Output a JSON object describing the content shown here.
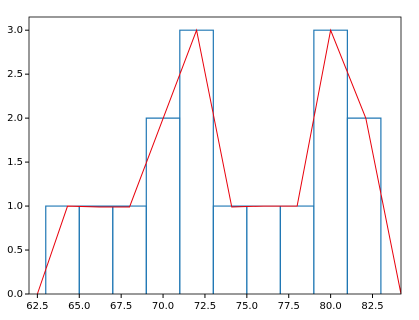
{
  "chart_data": {
    "type": "histogram",
    "bins": [
      63,
      65,
      67,
      69,
      71,
      73,
      75,
      77,
      79,
      81,
      83
    ],
    "counts": [
      1,
      1,
      1,
      2,
      3,
      1,
      1,
      1,
      3,
      2
    ],
    "color": "#1f77b4",
    "line": {
      "x": [
        62.5,
        64.3,
        66.2,
        68.0,
        72.0,
        74.1,
        76.0,
        78.0,
        80.0,
        82.1,
        84.2
      ],
      "values": [
        0,
        1,
        0.99,
        0.99,
        3,
        0.99,
        1,
        1,
        3,
        2,
        0
      ],
      "color": "#e8000b"
    },
    "xlim": [
      62.0,
      84.2
    ],
    "ylim": [
      0,
      3.15
    ],
    "xticks": [
      {
        "value": 62.5,
        "label": "62.5"
      },
      {
        "value": 65,
        "label": "65.0"
      },
      {
        "value": 67.5,
        "label": "67.5"
      },
      {
        "value": 70,
        "label": "70.0"
      },
      {
        "value": 72.5,
        "label": "72.5"
      },
      {
        "value": 75,
        "label": "75.0"
      },
      {
        "value": 77.5,
        "label": "77.5"
      },
      {
        "value": 80,
        "label": "80.0"
      },
      {
        "value": 82.5,
        "label": "82.5"
      }
    ],
    "yticks": [
      {
        "value": 0,
        "label": "0.0"
      },
      {
        "value": 0.5,
        "label": "0.5"
      },
      {
        "value": 1,
        "label": "1.0"
      },
      {
        "value": 1.5,
        "label": "1.5"
      },
      {
        "value": 2,
        "label": "2.0"
      },
      {
        "value": 2.5,
        "label": "2.5"
      },
      {
        "value": 3,
        "label": "3.0"
      }
    ]
  }
}
